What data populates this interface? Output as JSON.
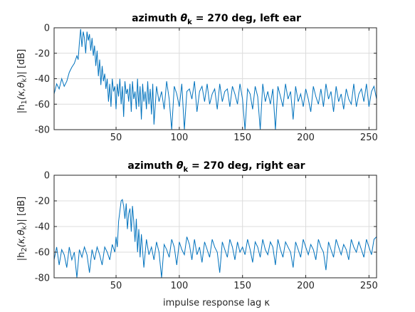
{
  "chart_data": [
    {
      "type": "line",
      "title_prefix": "azimuth ",
      "title_theta": "θ",
      "title_sub": "k",
      "title_suffix": " = 270 deg, left ear",
      "ylabel_left": "|h",
      "ylabel_index": "1",
      "ylabel_mid": "(κ,θ",
      "ylabel_sub": "k",
      "ylabel_right": ")| [dB]",
      "xlabel": "",
      "xlim": [
        1,
        256
      ],
      "ylim": [
        -80,
        0
      ],
      "xticks": [
        50,
        100,
        150,
        200,
        250
      ],
      "yticks": [
        0,
        -20,
        -40,
        -60,
        -80
      ],
      "grid": true,
      "series_color": "#0072bd",
      "series": [
        {
          "name": "",
          "x": [
            1,
            3,
            5,
            7,
            9,
            11,
            13,
            15,
            17,
            19,
            20,
            21,
            22,
            23,
            24,
            25,
            26,
            27,
            28,
            29,
            30,
            31,
            32,
            33,
            34,
            35,
            36,
            37,
            38,
            39,
            40,
            41,
            42,
            43,
            44,
            45,
            46,
            47,
            48,
            49,
            50,
            51,
            52,
            53,
            54,
            55,
            56,
            57,
            58,
            59,
            60,
            61,
            62,
            63,
            64,
            65,
            66,
            67,
            68,
            69,
            70,
            71,
            72,
            73,
            74,
            75,
            76,
            77,
            78,
            79,
            80,
            82,
            84,
            86,
            88,
            90,
            92,
            94,
            96,
            98,
            100,
            102,
            104,
            106,
            108,
            110,
            112,
            114,
            116,
            118,
            120,
            122,
            124,
            126,
            128,
            130,
            132,
            134,
            136,
            138,
            140,
            142,
            144,
            146,
            148,
            150,
            152,
            154,
            156,
            158,
            160,
            162,
            164,
            166,
            168,
            170,
            172,
            174,
            176,
            178,
            180,
            182,
            184,
            186,
            188,
            190,
            192,
            194,
            196,
            198,
            200,
            202,
            204,
            206,
            208,
            210,
            212,
            214,
            216,
            218,
            220,
            222,
            224,
            226,
            228,
            230,
            232,
            234,
            236,
            238,
            240,
            242,
            244,
            246,
            248,
            250,
            252,
            254,
            256
          ],
          "y": [
            -52,
            -44,
            -48,
            -40,
            -46,
            -42,
            -35,
            -31,
            -28,
            -22,
            -25,
            -12,
            -1,
            -15,
            -3,
            -8,
            -20,
            -3,
            -10,
            -5,
            -18,
            -8,
            -22,
            -14,
            -30,
            -18,
            -38,
            -25,
            -45,
            -30,
            -42,
            -36,
            -48,
            -40,
            -58,
            -44,
            -62,
            -40,
            -50,
            -46,
            -64,
            -44,
            -54,
            -40,
            -60,
            -46,
            -70,
            -42,
            -52,
            -48,
            -58,
            -44,
            -66,
            -42,
            -56,
            -50,
            -64,
            -40,
            -62,
            -46,
            -72,
            -44,
            -58,
            -50,
            -64,
            -42,
            -60,
            -48,
            -68,
            -44,
            -76,
            -46,
            -58,
            -50,
            -64,
            -42,
            -56,
            -80,
            -46,
            -52,
            -62,
            -44,
            -80,
            -50,
            -48,
            -56,
            -42,
            -66,
            -50,
            -46,
            -58,
            -44,
            -60,
            -52,
            -48,
            -64,
            -44,
            -58,
            -50,
            -48,
            -62,
            -46,
            -52,
            -60,
            -44,
            -56,
            -80,
            -48,
            -52,
            -64,
            -46,
            -54,
            -80,
            -44,
            -58,
            -50,
            -60,
            -48,
            -80,
            -46,
            -54,
            -62,
            -44,
            -56,
            -50,
            -72,
            -46,
            -58,
            -52,
            -62,
            -48,
            -56,
            -66,
            -46,
            -54,
            -60,
            -48,
            -62,
            -44,
            -56,
            -50,
            -66,
            -46,
            -58,
            -52,
            -64,
            -48,
            -56,
            -60,
            -44,
            -62,
            -52,
            -48,
            -58,
            -44,
            -62,
            -50,
            -46,
            -56
          ]
        }
      ]
    },
    {
      "type": "line",
      "title_prefix": "azimuth ",
      "title_theta": "θ",
      "title_sub": "k",
      "title_suffix": " = 270 deg, right ear",
      "ylabel_left": "|h",
      "ylabel_index": "2",
      "ylabel_mid": "(κ,θ",
      "ylabel_sub": "k",
      "ylabel_right": ")| [dB]",
      "xlabel": "impulse response lag κ",
      "xlim": [
        1,
        256
      ],
      "ylim": [
        -80,
        0
      ],
      "xticks": [
        50,
        100,
        150,
        200,
        250
      ],
      "yticks": [
        0,
        -20,
        -40,
        -60,
        -80
      ],
      "grid": true,
      "series_color": "#0072bd",
      "series": [
        {
          "name": "",
          "x": [
            1,
            3,
            5,
            7,
            9,
            11,
            13,
            15,
            17,
            19,
            21,
            23,
            25,
            27,
            29,
            31,
            33,
            35,
            37,
            39,
            41,
            43,
            45,
            47,
            49,
            50,
            51,
            52,
            53,
            54,
            55,
            56,
            57,
            58,
            59,
            60,
            61,
            62,
            63,
            64,
            65,
            66,
            67,
            68,
            69,
            70,
            72,
            74,
            76,
            78,
            80,
            82,
            84,
            86,
            88,
            90,
            92,
            94,
            96,
            98,
            100,
            102,
            104,
            106,
            108,
            110,
            112,
            114,
            116,
            118,
            120,
            122,
            124,
            126,
            128,
            130,
            132,
            134,
            136,
            138,
            140,
            142,
            144,
            146,
            148,
            150,
            152,
            154,
            156,
            158,
            160,
            162,
            164,
            166,
            168,
            170,
            172,
            174,
            176,
            178,
            180,
            182,
            184,
            186,
            188,
            190,
            192,
            194,
            196,
            198,
            200,
            202,
            204,
            206,
            208,
            210,
            212,
            214,
            216,
            218,
            220,
            222,
            224,
            226,
            228,
            230,
            232,
            234,
            236,
            238,
            240,
            242,
            244,
            246,
            248,
            250,
            252,
            254,
            256
          ],
          "y": [
            -66,
            -56,
            -70,
            -58,
            -62,
            -72,
            -56,
            -66,
            -60,
            -80,
            -58,
            -64,
            -56,
            -62,
            -76,
            -58,
            -66,
            -56,
            -62,
            -70,
            -56,
            -60,
            -66,
            -54,
            -60,
            -48,
            -56,
            -36,
            -28,
            -20,
            -19,
            -24,
            -34,
            -22,
            -42,
            -30,
            -26,
            -44,
            -24,
            -36,
            -52,
            -34,
            -60,
            -42,
            -64,
            -46,
            -72,
            -50,
            -62,
            -56,
            -66,
            -52,
            -60,
            -80,
            -54,
            -58,
            -64,
            -50,
            -56,
            -70,
            -52,
            -58,
            -62,
            -48,
            -54,
            -66,
            -50,
            -62,
            -56,
            -68,
            -52,
            -58,
            -64,
            -50,
            -56,
            -60,
            -76,
            -52,
            -58,
            -64,
            -50,
            -56,
            -66,
            -52,
            -60,
            -56,
            -62,
            -50,
            -58,
            -68,
            -52,
            -56,
            -64,
            -50,
            -58,
            -62,
            -52,
            -56,
            -70,
            -50,
            -58,
            -64,
            -52,
            -56,
            -60,
            -72,
            -52,
            -58,
            -64,
            -50,
            -56,
            -62,
            -54,
            -58,
            -66,
            -50,
            -56,
            -60,
            -74,
            -52,
            -58,
            -64,
            -50,
            -56,
            -62,
            -54,
            -58,
            -66,
            -50,
            -56,
            -60,
            -52,
            -58,
            -64,
            -50,
            -56,
            -62,
            -50,
            -48
          ]
        }
      ]
    }
  ]
}
